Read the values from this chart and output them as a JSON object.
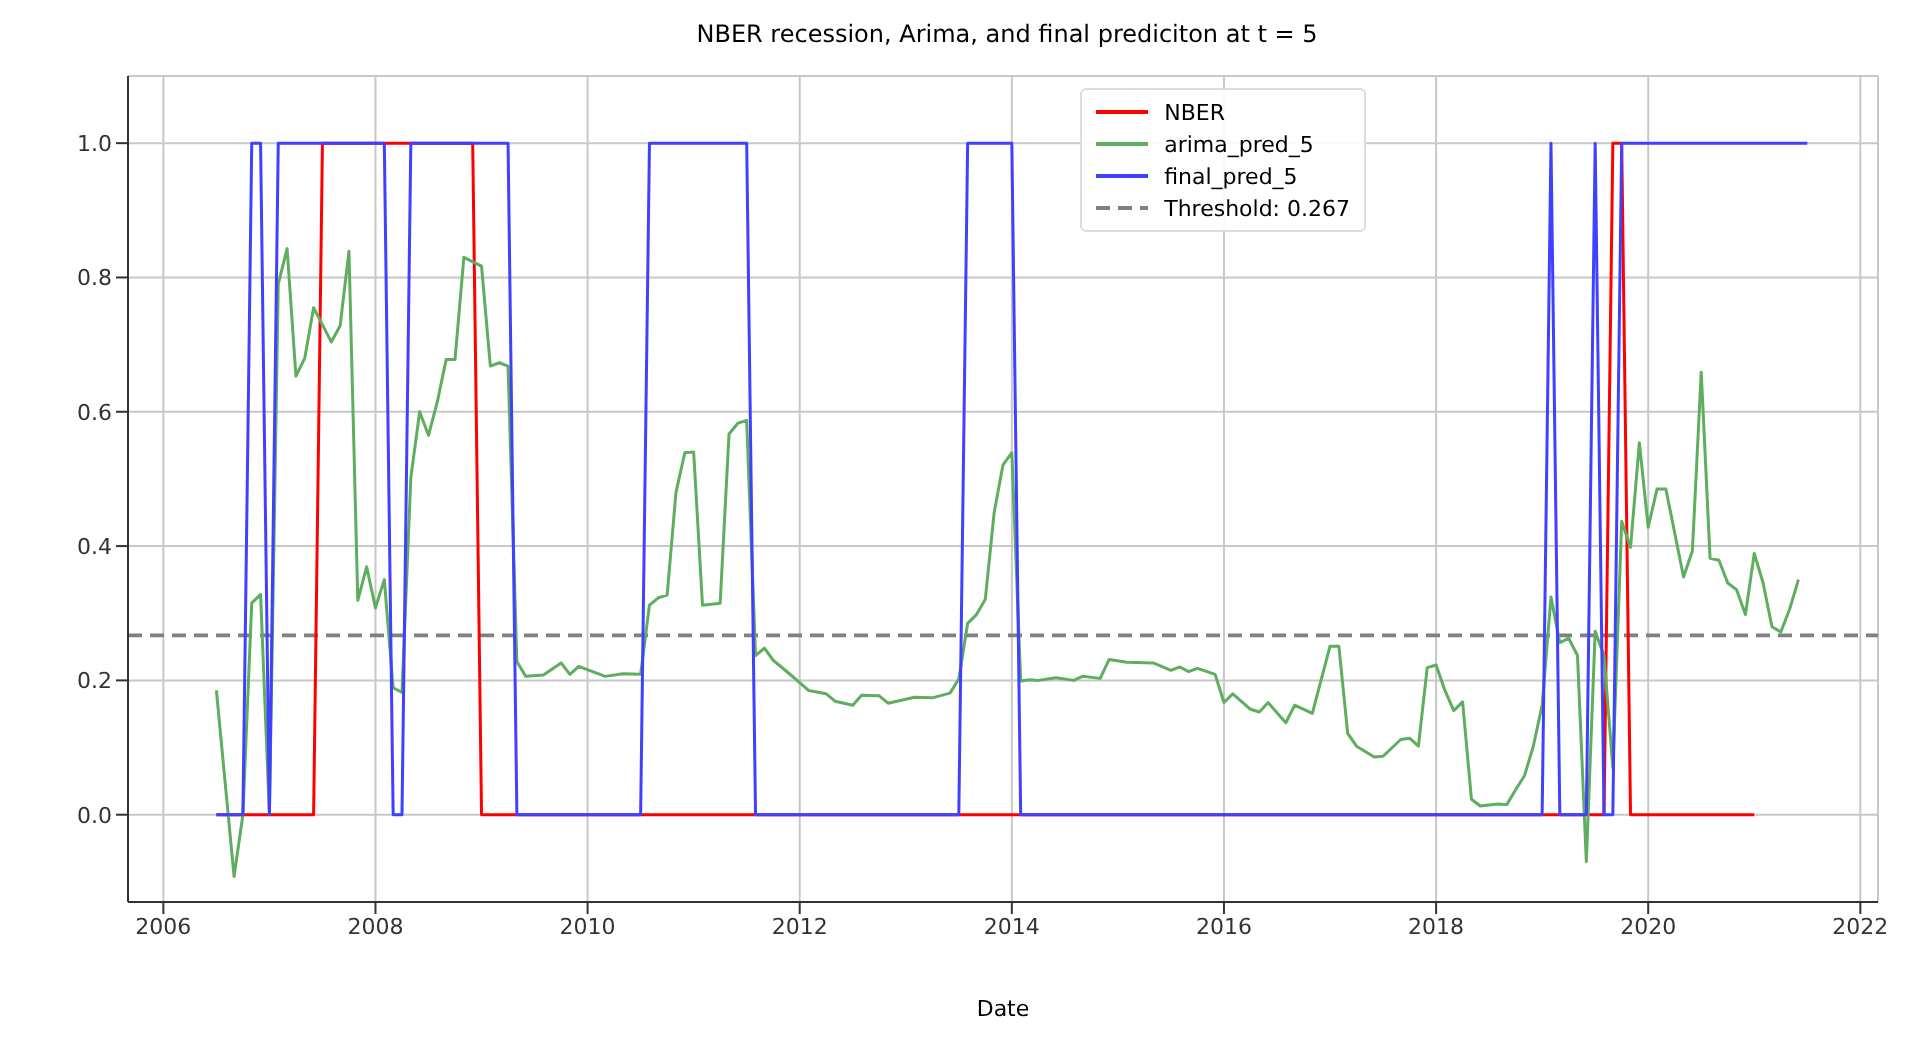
{
  "chart_data": {
    "type": "line",
    "title": "NBER recession, Arima, and final prediciton at t = 5",
    "xlabel": "Date",
    "xlim": [
      "2005-09",
      "2022-03"
    ],
    "xticks": [
      "2006",
      "2008",
      "2010",
      "2012",
      "2014",
      "2016",
      "2018",
      "2020",
      "2022"
    ],
    "ylim": [
      -0.13,
      1.1
    ],
    "yticks": [
      {
        "value": 0,
        "label": "0.0"
      },
      {
        "value": 0.2,
        "label": "0.2"
      },
      {
        "value": 0.4,
        "label": "0.4"
      },
      {
        "value": 0.6,
        "label": "0.6"
      },
      {
        "value": 0.8,
        "label": "0.8"
      },
      {
        "value": 1,
        "label": "1.0"
      }
    ],
    "grid": true,
    "legend": "top right",
    "line_style": "solid",
    "marker": "none",
    "ref_lines": [
      {
        "axis": "y",
        "value": 0.267,
        "label": "Threshold: 0.267",
        "color": "#808080",
        "line_style": "dashed"
      }
    ],
    "series": [
      {
        "name": "NBER",
        "color": "#ff0000",
        "x": [
          "2006-07",
          "2007-06",
          "2007-07",
          "2008-12",
          "2009-01",
          "2019-08",
          "2019-09",
          "2019-10",
          "2019-11",
          "2021-01"
        ],
        "values": [
          0,
          0,
          1,
          1,
          0,
          0,
          1,
          1,
          0,
          0
        ]
      },
      {
        "name": "arima_pred_5",
        "color": "#5fae5f",
        "x": [
          "2006-07",
          "2006-09",
          "2006-10",
          "2006-11",
          "2006-12",
          "2007-01",
          "2007-02",
          "2007-03",
          "2007-04",
          "2007-05",
          "2007-06",
          "2007-08",
          "2007-09",
          "2007-10",
          "2007-11",
          "2007-12",
          "2008-01",
          "2008-02",
          "2008-03",
          "2008-04",
          "2008-05",
          "2008-06",
          "2008-07",
          "2008-08",
          "2008-09",
          "2008-10",
          "2008-11",
          "2009-01",
          "2009-02",
          "2009-03",
          "2009-04",
          "2009-05",
          "2009-06",
          "2009-08",
          "2009-10",
          "2009-11",
          "2009-12",
          "2010-03",
          "2010-05",
          "2010-07",
          "2010-08",
          "2010-09",
          "2010-10",
          "2010-11",
          "2010-12",
          "2011-01",
          "2011-02",
          "2011-04",
          "2011-05",
          "2011-06",
          "2011-07",
          "2011-08",
          "2011-09",
          "2011-10",
          "2011-12",
          "2012-02",
          "2012-04",
          "2012-05",
          "2012-07",
          "2012-08",
          "2012-10",
          "2012-11",
          "2013-02",
          "2013-04",
          "2013-06",
          "2013-07",
          "2013-08",
          "2013-09",
          "2013-10",
          "2013-11",
          "2013-12",
          "2014-01",
          "2014-02",
          "2014-03",
          "2014-04",
          "2014-06",
          "2014-08",
          "2014-09",
          "2014-11",
          "2014-12",
          "2015-02",
          "2015-05",
          "2015-07",
          "2015-08",
          "2015-09",
          "2015-10",
          "2015-12",
          "2016-01",
          "2016-02",
          "2016-04",
          "2016-05",
          "2016-06",
          "2016-08",
          "2016-09",
          "2016-11",
          "2017-01",
          "2017-02",
          "2017-03",
          "2017-04",
          "2017-06",
          "2017-07",
          "2017-09",
          "2017-10",
          "2017-11",
          "2017-12",
          "2018-01",
          "2018-02",
          "2018-03",
          "2018-04",
          "2018-05",
          "2018-06",
          "2018-08",
          "2018-09",
          "2018-10",
          "2018-11",
          "2018-12",
          "2019-01",
          "2019-02",
          "2019-03",
          "2019-04",
          "2019-05",
          "2019-06",
          "2019-07",
          "2019-08",
          "2019-09",
          "2019-10",
          "2019-11",
          "2019-12",
          "2020-01",
          "2020-02",
          "2020-03",
          "2020-05",
          "2020-06",
          "2020-07",
          "2020-08",
          "2020-09",
          "2020-10",
          "2020-11",
          "2020-12",
          "2021-01",
          "2021-02",
          "2021-03",
          "2021-04",
          "2021-05",
          "2021-06"
        ],
        "values": [
          0.185,
          -0.092,
          0,
          0.315,
          0.328,
          0,
          0.79,
          0.843,
          0.653,
          0.68,
          0.755,
          0.704,
          0.728,
          0.839,
          0.319,
          0.369,
          0.308,
          0.35,
          0.189,
          0.182,
          0.502,
          0.6,
          0.565,
          0.615,
          0.678,
          0.678,
          0.83,
          0.817,
          0.668,
          0.673,
          0.668,
          0.228,
          0.206,
          0.208,
          0.226,
          0.209,
          0.221,
          0.206,
          0.21,
          0.209,
          0.312,
          0.323,
          0.327,
          0.48,
          0.539,
          0.54,
          0.312,
          0.315,
          0.567,
          0.583,
          0.587,
          0.237,
          0.248,
          0.23,
          0.208,
          0.185,
          0.18,
          0.169,
          0.163,
          0.178,
          0.177,
          0.166,
          0.175,
          0.174,
          0.181,
          0.202,
          0.285,
          0.298,
          0.321,
          0.45,
          0.521,
          0.539,
          0.199,
          0.201,
          0.2,
          0.204,
          0.2,
          0.206,
          0.203,
          0.231,
          0.227,
          0.226,
          0.215,
          0.22,
          0.213,
          0.218,
          0.209,
          0.167,
          0.18,
          0.157,
          0.153,
          0.167,
          0.137,
          0.163,
          0.151,
          0.251,
          0.251,
          0.121,
          0.102,
          0.086,
          0.087,
          0.112,
          0.114,
          0.102,
          0.219,
          0.223,
          0.185,
          0.155,
          0.168,
          0.023,
          0.013,
          0.016,
          0.015,
          0.037,
          0.058,
          0.102,
          0.163,
          0.324,
          0.256,
          0.263,
          0.237,
          -0.07,
          0.273,
          0.237,
          0.07,
          0.437,
          0.398,
          0.554,
          0.428,
          0.485,
          0.485,
          0.354,
          0.393,
          0.659,
          0.382,
          0.379,
          0.345,
          0.335,
          0.298,
          0.389,
          0.345,
          0.28,
          0.272,
          0.306,
          0.35
        ]
      },
      {
        "name": "final_pred_5",
        "color": "#4040ff",
        "x": [
          "2006-07",
          "2006-10",
          "2006-11",
          "2006-12",
          "2007-01",
          "2007-02",
          "2008-02",
          "2008-03",
          "2008-04",
          "2008-05",
          "2009-04",
          "2009-05",
          "2010-07",
          "2010-08",
          "2011-07",
          "2011-08",
          "2013-07",
          "2013-08",
          "2014-01",
          "2014-02",
          "2019-01",
          "2019-02",
          "2019-03",
          "2019-06",
          "2019-07",
          "2019-08",
          "2019-09",
          "2019-10",
          "2021-07"
        ],
        "values": [
          0,
          0,
          1,
          1,
          0,
          1,
          1,
          0,
          0,
          1,
          1,
          0,
          0,
          1,
          1,
          0,
          0,
          1,
          1,
          0,
          0,
          1,
          0,
          0,
          1,
          0,
          0,
          1,
          1
        ]
      }
    ]
  }
}
